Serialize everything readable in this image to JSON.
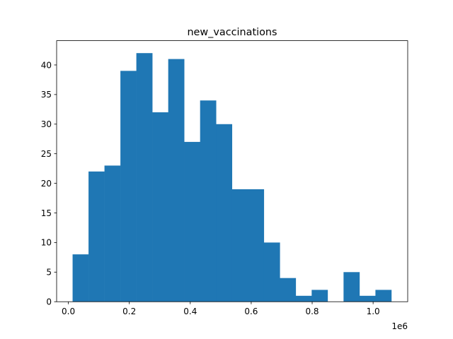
{
  "chart_data": {
    "type": "bar",
    "title": "new_vaccinations",
    "xlabel": "",
    "ylabel": "",
    "x_offset_label": "1e6",
    "xlim": [
      -0.0385,
      1.1135
    ],
    "ylim": [
      0,
      44.1
    ],
    "x_ticks": [
      {
        "value": 0.0,
        "label": "0.0"
      },
      {
        "value": 0.2,
        "label": "0.2"
      },
      {
        "value": 0.4,
        "label": "0.4"
      },
      {
        "value": 0.6,
        "label": "0.6"
      },
      {
        "value": 0.8,
        "label": "0.8"
      },
      {
        "value": 1.0,
        "label": "1.0"
      }
    ],
    "y_ticks": [
      {
        "value": 0,
        "label": "0"
      },
      {
        "value": 5,
        "label": "5"
      },
      {
        "value": 10,
        "label": "10"
      },
      {
        "value": 15,
        "label": "15"
      },
      {
        "value": 20,
        "label": "20"
      },
      {
        "value": 25,
        "label": "25"
      },
      {
        "value": 30,
        "label": "30"
      },
      {
        "value": 35,
        "label": "35"
      },
      {
        "value": 40,
        "label": "40"
      }
    ],
    "bin_edges": [
      0.0139,
      0.0662,
      0.1185,
      0.1708,
      0.2231,
      0.2754,
      0.3277,
      0.38,
      0.4323,
      0.4846,
      0.5369,
      0.5892,
      0.6415,
      0.6938,
      0.7461,
      0.7984,
      0.8507,
      0.903,
      0.9553,
      1.0076,
      1.0599
    ],
    "values": [
      8,
      22,
      23,
      39,
      42,
      32,
      41,
      27,
      34,
      30,
      19,
      19,
      10,
      4,
      1,
      2,
      0,
      5,
      1,
      2
    ],
    "bar_color": "#1f77b4",
    "grid": false
  }
}
